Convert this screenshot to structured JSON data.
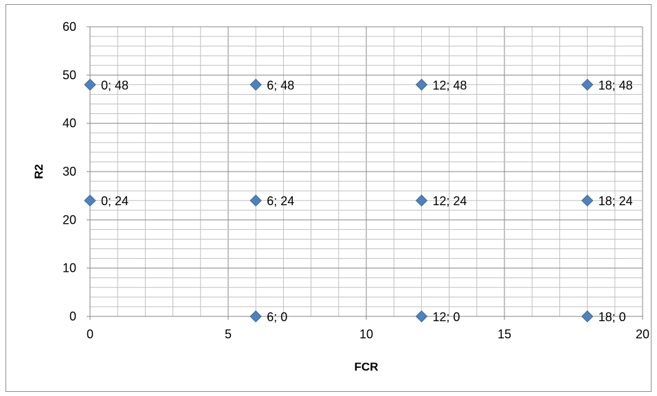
{
  "chart_data": {
    "type": "scatter",
    "xlabel": "FCR",
    "ylabel": "R2",
    "xlim": [
      0,
      20
    ],
    "ylim": [
      0,
      60
    ],
    "x_ticks": [
      0,
      5,
      10,
      15,
      20
    ],
    "y_ticks": [
      0,
      10,
      20,
      30,
      40,
      50,
      60
    ],
    "x_minor_step": 1,
    "y_minor_step": 2,
    "grid": true,
    "legend": "none",
    "marker": "diamond",
    "marker_color": "#4f81bd",
    "series": [
      {
        "points": [
          {
            "x": 0,
            "y": 48,
            "label": "0; 48"
          },
          {
            "x": 6,
            "y": 48,
            "label": "6; 48"
          },
          {
            "x": 12,
            "y": 48,
            "label": "12; 48"
          },
          {
            "x": 18,
            "y": 48,
            "label": "18; 48"
          },
          {
            "x": 0,
            "y": 24,
            "label": "0; 24"
          },
          {
            "x": 6,
            "y": 24,
            "label": "6; 24"
          },
          {
            "x": 12,
            "y": 24,
            "label": "12; 24"
          },
          {
            "x": 18,
            "y": 24,
            "label": "18; 24"
          },
          {
            "x": 6,
            "y": 0,
            "label": "6; 0"
          },
          {
            "x": 12,
            "y": 0,
            "label": "12; 0"
          },
          {
            "x": 18,
            "y": 0,
            "label": "18; 0"
          }
        ]
      }
    ]
  }
}
